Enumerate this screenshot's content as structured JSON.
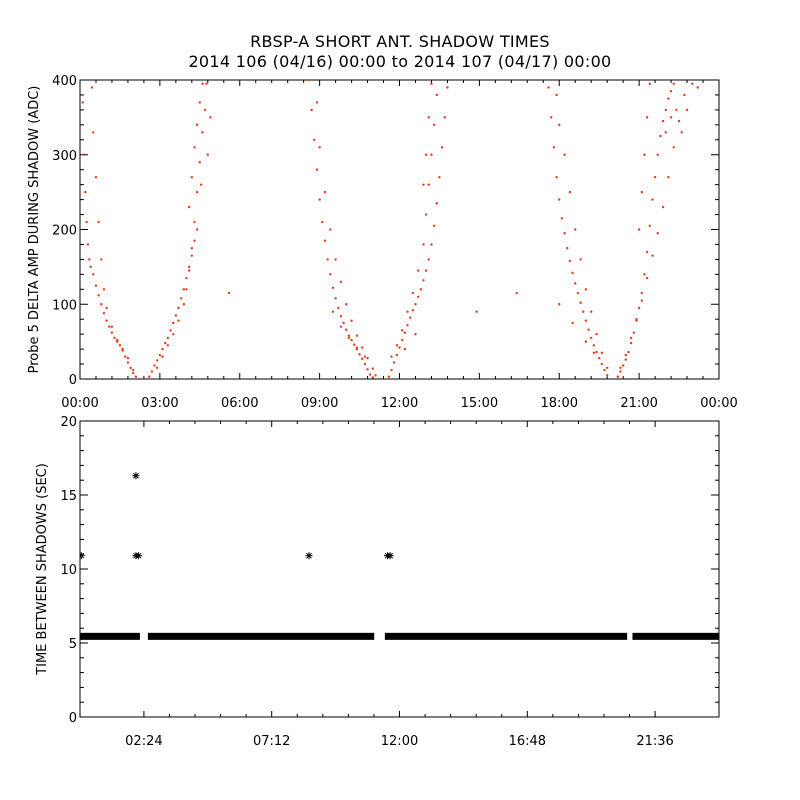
{
  "title_line1": "RBSP-A SHORT ANT. SHADOW TIMES",
  "title_line2": "2014 106 (04/16) 00:00 to 2014 107 (04/17) 00:00",
  "colors": {
    "points_top": "#e8391a",
    "points_bottom": "#000000",
    "axes": "#000000"
  },
  "chart_data": [
    {
      "type": "scatter",
      "ylabel": "Probe 5 DELTA AMP DURING SHADOW (ADC)",
      "xlabel": "",
      "xlim": [
        0,
        24
      ],
      "ylim": [
        0,
        400
      ],
      "x_tick_values": [
        0,
        3,
        6,
        9,
        12,
        15,
        18,
        21,
        24
      ],
      "x_tick_labels": [
        "00:00",
        "03:00",
        "06:00",
        "09:00",
        "12:00",
        "15:00",
        "18:00",
        "21:00",
        "00:00"
      ],
      "y_tick_values": [
        0,
        100,
        200,
        300,
        400
      ],
      "y_tick_labels": [
        "0",
        "100",
        "200",
        "300",
        "400"
      ],
      "marker": "dot",
      "series": [
        {
          "points": [
            [
              0.1,
              370
            ],
            [
              0.15,
              300
            ],
            [
              0.2,
              250
            ],
            [
              0.25,
              210
            ],
            [
              0.3,
              180
            ],
            [
              0.35,
              160
            ],
            [
              0.4,
              150
            ],
            [
              0.5,
              140
            ],
            [
              0.6,
              125
            ],
            [
              0.7,
              112
            ],
            [
              0.8,
              100
            ],
            [
              0.9,
              88
            ],
            [
              1.0,
              78
            ],
            [
              1.1,
              70
            ],
            [
              1.2,
              62
            ],
            [
              1.3,
              55
            ],
            [
              1.4,
              50
            ],
            [
              1.5,
              45
            ],
            [
              1.6,
              38
            ],
            [
              1.7,
              30
            ],
            [
              1.8,
              22
            ],
            [
              1.9,
              15
            ],
            [
              2.0,
              8
            ],
            [
              2.1,
              3
            ],
            [
              0.45,
              390
            ],
            [
              0.5,
              330
            ],
            [
              0.6,
              270
            ],
            [
              0.7,
              210
            ],
            [
              0.8,
              160
            ],
            [
              0.9,
              120
            ],
            [
              1.0,
              95
            ],
            [
              1.2,
              70
            ],
            [
              1.4,
              52
            ],
            [
              1.6,
              40
            ],
            [
              1.8,
              28
            ],
            [
              2.0,
              12
            ],
            [
              2.6,
              3
            ],
            [
              2.7,
              10
            ],
            [
              2.8,
              18
            ],
            [
              2.9,
              25
            ],
            [
              3.0,
              32
            ],
            [
              3.1,
              40
            ],
            [
              3.2,
              48
            ],
            [
              3.3,
              55
            ],
            [
              3.4,
              65
            ],
            [
              3.5,
              75
            ],
            [
              3.6,
              85
            ],
            [
              3.7,
              95
            ],
            [
              3.8,
              108
            ],
            [
              3.9,
              120
            ],
            [
              4.0,
              135
            ],
            [
              4.1,
              150
            ],
            [
              4.2,
              165
            ],
            [
              4.3,
              185
            ],
            [
              2.9,
              15
            ],
            [
              3.1,
              30
            ],
            [
              3.3,
              45
            ],
            [
              3.5,
              60
            ],
            [
              3.7,
              78
            ],
            [
              3.9,
              100
            ],
            [
              4.0,
              120
            ],
            [
              4.1,
              145
            ],
            [
              4.2,
              175
            ],
            [
              4.3,
              210
            ],
            [
              4.4,
              250
            ],
            [
              4.5,
              290
            ],
            [
              4.6,
              330
            ],
            [
              4.7,
              360
            ],
            [
              4.75,
              395
            ],
            [
              4.1,
              230
            ],
            [
              4.2,
              270
            ],
            [
              4.3,
              310
            ],
            [
              4.4,
              340
            ],
            [
              4.5,
              370
            ],
            [
              4.6,
              395
            ],
            [
              4.4,
              200
            ],
            [
              4.55,
              260
            ],
            [
              4.8,
              300
            ],
            [
              4.9,
              350
            ],
            [
              5.6,
              115
            ],
            [
              14.9,
              90
            ],
            [
              16.4,
              115
            ],
            [
              8.6,
              400
            ],
            [
              8.7,
              360
            ],
            [
              8.8,
              320
            ],
            [
              8.9,
              280
            ],
            [
              9.0,
              240
            ],
            [
              9.1,
              210
            ],
            [
              9.2,
              185
            ],
            [
              9.3,
              160
            ],
            [
              9.4,
              140
            ],
            [
              9.5,
              122
            ],
            [
              9.6,
              108
            ],
            [
              9.7,
              95
            ],
            [
              9.8,
              84
            ],
            [
              9.9,
              75
            ],
            [
              10.0,
              66
            ],
            [
              10.1,
              58
            ],
            [
              10.2,
              52
            ],
            [
              10.3,
              46
            ],
            [
              10.4,
              40
            ],
            [
              10.5,
              33
            ],
            [
              10.6,
              27
            ],
            [
              10.7,
              20
            ],
            [
              10.8,
              13
            ],
            [
              10.9,
              6
            ],
            [
              11.0,
              2
            ],
            [
              8.9,
              370
            ],
            [
              9.0,
              310
            ],
            [
              9.2,
              250
            ],
            [
              9.4,
              200
            ],
            [
              9.6,
              160
            ],
            [
              9.8,
              130
            ],
            [
              10.0,
              100
            ],
            [
              10.2,
              78
            ],
            [
              10.4,
              58
            ],
            [
              10.6,
              42
            ],
            [
              10.8,
              28
            ],
            [
              11.0,
              14
            ],
            [
              11.1,
              5
            ],
            [
              9.5,
              90
            ],
            [
              9.8,
              70
            ],
            [
              10.1,
              55
            ],
            [
              10.4,
              42
            ],
            [
              10.7,
              30
            ],
            [
              11.6,
              3
            ],
            [
              11.7,
              12
            ],
            [
              11.8,
              22
            ],
            [
              11.9,
              32
            ],
            [
              12.0,
              42
            ],
            [
              12.1,
              52
            ],
            [
              12.2,
              62
            ],
            [
              12.3,
              72
            ],
            [
              12.4,
              82
            ],
            [
              12.5,
              92
            ],
            [
              12.6,
              100
            ],
            [
              12.7,
              110
            ],
            [
              12.8,
              120
            ],
            [
              12.9,
              132
            ],
            [
              13.0,
              145
            ],
            [
              13.1,
              160
            ],
            [
              13.2,
              180
            ],
            [
              13.3,
              205
            ],
            [
              13.4,
              235
            ],
            [
              13.5,
              270
            ],
            [
              13.6,
              310
            ],
            [
              13.7,
              350
            ],
            [
              13.8,
              390
            ],
            [
              11.7,
              30
            ],
            [
              11.9,
              45
            ],
            [
              12.1,
              65
            ],
            [
              12.3,
              90
            ],
            [
              12.5,
              115
            ],
            [
              12.7,
              145
            ],
            [
              12.9,
              180
            ],
            [
              13.0,
              220
            ],
            [
              13.1,
              260
            ],
            [
              13.2,
              300
            ],
            [
              13.3,
              340
            ],
            [
              13.4,
              380
            ],
            [
              12.9,
              260
            ],
            [
              13.0,
              300
            ],
            [
              13.1,
              350
            ],
            [
              13.2,
              395
            ],
            [
              12.2,
              40
            ],
            [
              12.6,
              60
            ],
            [
              17.6,
              390
            ],
            [
              17.7,
              350
            ],
            [
              17.8,
              310
            ],
            [
              17.9,
              270
            ],
            [
              18.0,
              240
            ],
            [
              18.1,
              215
            ],
            [
              18.2,
              195
            ],
            [
              18.3,
              175
            ],
            [
              18.4,
              158
            ],
            [
              18.5,
              142
            ],
            [
              18.6,
              128
            ],
            [
              18.7,
              115
            ],
            [
              18.8,
              102
            ],
            [
              18.9,
              90
            ],
            [
              19.0,
              78
            ],
            [
              19.1,
              66
            ],
            [
              19.2,
              55
            ],
            [
              19.3,
              45
            ],
            [
              19.4,
              36
            ],
            [
              19.5,
              28
            ],
            [
              19.6,
              20
            ],
            [
              19.7,
              12
            ],
            [
              19.8,
              5
            ],
            [
              17.9,
              380
            ],
            [
              18.0,
              340
            ],
            [
              18.2,
              300
            ],
            [
              18.4,
              250
            ],
            [
              18.6,
              200
            ],
            [
              18.8,
              160
            ],
            [
              19.0,
              120
            ],
            [
              19.2,
              90
            ],
            [
              19.4,
              60
            ],
            [
              19.6,
              35
            ],
            [
              19.8,
              15
            ],
            [
              18.0,
              100
            ],
            [
              18.5,
              75
            ],
            [
              19.0,
              50
            ],
            [
              19.3,
              35
            ],
            [
              20.2,
              3
            ],
            [
              20.3,
              10
            ],
            [
              20.4,
              18
            ],
            [
              20.5,
              26
            ],
            [
              20.6,
              36
            ],
            [
              20.7,
              48
            ],
            [
              20.8,
              62
            ],
            [
              20.9,
              78
            ],
            [
              21.0,
              95
            ],
            [
              21.1,
              115
            ],
            [
              21.2,
              140
            ],
            [
              21.3,
              170
            ],
            [
              21.4,
              205
            ],
            [
              21.5,
              240
            ],
            [
              21.6,
              270
            ],
            [
              21.7,
              300
            ],
            [
              21.8,
              325
            ],
            [
              21.9,
              345
            ],
            [
              22.0,
              360
            ],
            [
              22.1,
              375
            ],
            [
              22.2,
              385
            ],
            [
              22.3,
              395
            ],
            [
              20.3,
              15
            ],
            [
              20.5,
              32
            ],
            [
              20.7,
              55
            ],
            [
              20.9,
              80
            ],
            [
              21.1,
              105
            ],
            [
              21.3,
              135
            ],
            [
              21.5,
              165
            ],
            [
              21.7,
              195
            ],
            [
              21.9,
              230
            ],
            [
              22.1,
              270
            ],
            [
              22.3,
              310
            ],
            [
              22.5,
              345
            ],
            [
              22.7,
              380
            ],
            [
              21.0,
              200
            ],
            [
              21.1,
              250
            ],
            [
              21.2,
              300
            ],
            [
              21.3,
              350
            ],
            [
              21.4,
              395
            ],
            [
              22.0,
              330
            ],
            [
              22.2,
              350
            ],
            [
              22.4,
              360
            ],
            [
              22.6,
              330
            ],
            [
              22.8,
              360
            ],
            [
              23.0,
              395
            ],
            [
              23.2,
              390
            ]
          ]
        }
      ]
    },
    {
      "type": "scatter",
      "ylabel": "TIME BETWEEN SHADOWS (SEC)",
      "xlabel": "",
      "xlim": [
        0,
        24
      ],
      "ylim": [
        0,
        20
      ],
      "x_tick_values": [
        2.4,
        7.2,
        12.0,
        16.8,
        21.6
      ],
      "x_tick_labels": [
        "02:24",
        "07:12",
        "12:00",
        "16:48",
        "21:36"
      ],
      "y_tick_values": [
        0,
        5,
        10,
        15,
        20
      ],
      "y_tick_labels": [
        "0",
        "5",
        "10",
        "15",
        "20"
      ],
      "marker": "asterisk",
      "band": {
        "y": 5.45,
        "segments": [
          [
            0.0,
            2.25
          ],
          [
            2.55,
            11.05
          ],
          [
            11.45,
            20.55
          ],
          [
            20.75,
            24.0
          ]
        ]
      },
      "series": [
        {
          "points": [
            [
              0.05,
              10.9
            ],
            [
              2.1,
              16.3
            ],
            [
              2.1,
              10.9
            ],
            [
              2.2,
              10.9
            ],
            [
              8.6,
              10.9
            ],
            [
              11.55,
              10.9
            ],
            [
              11.65,
              10.9
            ]
          ]
        }
      ]
    }
  ]
}
